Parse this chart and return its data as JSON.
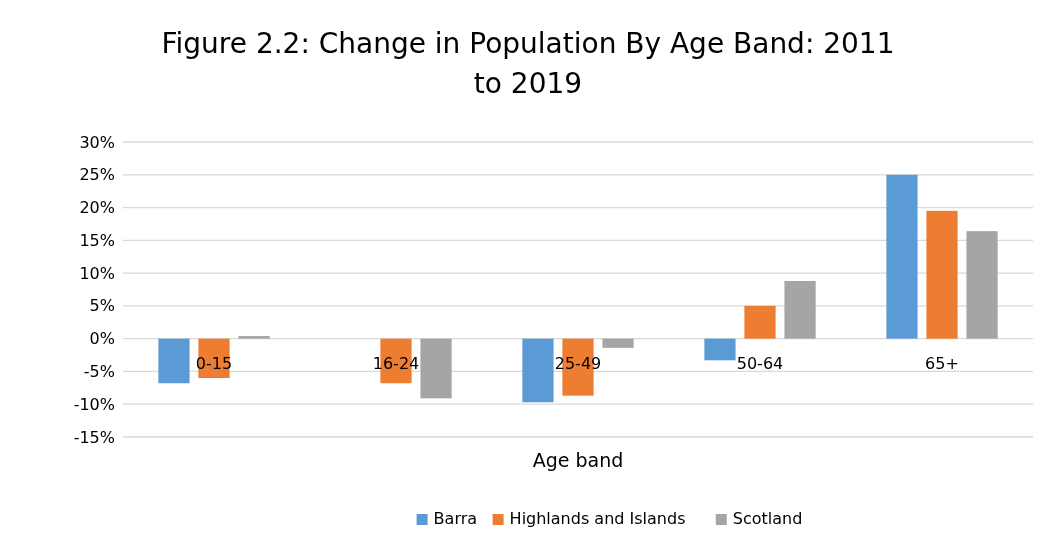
{
  "chart_data": {
    "type": "bar",
    "title": "Figure 2.2: Change in Population By Age Band: 2011 to 2019",
    "xlabel": "Age band",
    "categories": [
      "0-15",
      "16-24",
      "25-49",
      "50-64",
      "65+"
    ],
    "series": [
      {
        "name": "Barra",
        "color": "#5b9bd5",
        "values": [
          -6.8,
          0,
          -9.7,
          -3.3,
          25.0
        ]
      },
      {
        "name": "Highlands and Islands",
        "color": "#ed7d31",
        "values": [
          -6.0,
          -6.8,
          -8.7,
          5.0,
          19.5
        ]
      },
      {
        "name": "Scotland",
        "color": "#a5a5a5",
        "values": [
          0.4,
          -9.1,
          -1.4,
          8.8,
          16.4
        ]
      }
    ],
    "ylim": [
      -15,
      30
    ],
    "yticks": [
      {
        "value": -15,
        "label": "-15%"
      },
      {
        "value": -10,
        "label": "-10%"
      },
      {
        "value": -5,
        "label": "-5%"
      },
      {
        "value": 0,
        "label": "0%"
      },
      {
        "value": 5,
        "label": "5%"
      },
      {
        "value": 10,
        "label": "10%"
      },
      {
        "value": 15,
        "label": "15%"
      },
      {
        "value": 20,
        "label": "20%"
      },
      {
        "value": 25,
        "label": "25%"
      },
      {
        "value": 30,
        "label": "30%"
      }
    ],
    "grid": "y",
    "legend": "bottom"
  }
}
